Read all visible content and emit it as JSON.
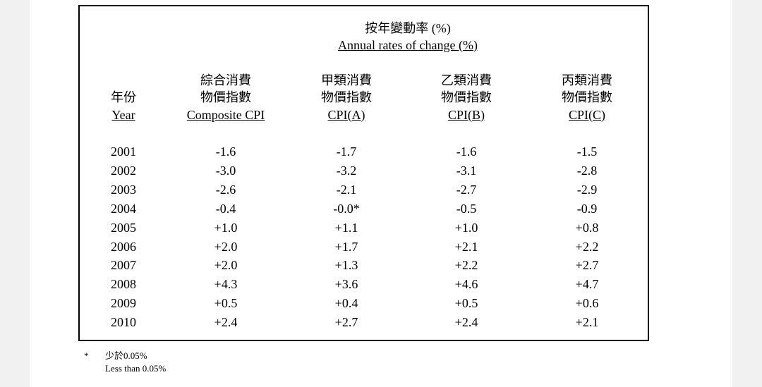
{
  "caption": {
    "zh": "按年變動率 (%)",
    "en": "Annual rates of change (%)"
  },
  "columns": [
    {
      "zh1": "",
      "zh2": "年份",
      "en": "Year"
    },
    {
      "zh1": "綜合消費",
      "zh2": "物價指數",
      "en": "Composite CPI"
    },
    {
      "zh1": "甲類消費",
      "zh2": "物價指數",
      "en": "CPI(A)"
    },
    {
      "zh1": "乙類消費",
      "zh2": "物價指數",
      "en": "CPI(B)"
    },
    {
      "zh1": "丙類消費",
      "zh2": "物價指數",
      "en": "CPI(C)"
    }
  ],
  "rows": [
    [
      "2001",
      "-1.6",
      "-1.7",
      "-1.6",
      "-1.5"
    ],
    [
      "2002",
      "-3.0",
      "-3.2",
      "-3.1",
      "-2.8"
    ],
    [
      "2003",
      "-2.6",
      "-2.1",
      "-2.7",
      "-2.9"
    ],
    [
      "2004",
      "-0.4",
      "-0.0*",
      "-0.5",
      "-0.9"
    ],
    [
      "2005",
      "+1.0",
      "+1.1",
      "+1.0",
      "+0.8"
    ],
    [
      "2006",
      "+2.0",
      "+1.7",
      "+2.1",
      "+2.2"
    ],
    [
      "2007",
      "+2.0",
      "+1.3",
      "+2.2",
      "+2.7"
    ],
    [
      "2008",
      "+4.3",
      "+3.6",
      "+4.6",
      "+4.7"
    ],
    [
      "2009",
      "+0.5",
      "+0.4",
      "+0.5",
      "+0.6"
    ],
    [
      "2010",
      "+2.4",
      "+2.7",
      "+2.4",
      "+2.1"
    ]
  ],
  "footnote": {
    "marker": "*",
    "zh": "少於0.05%",
    "en": "Less than 0.05%"
  }
}
